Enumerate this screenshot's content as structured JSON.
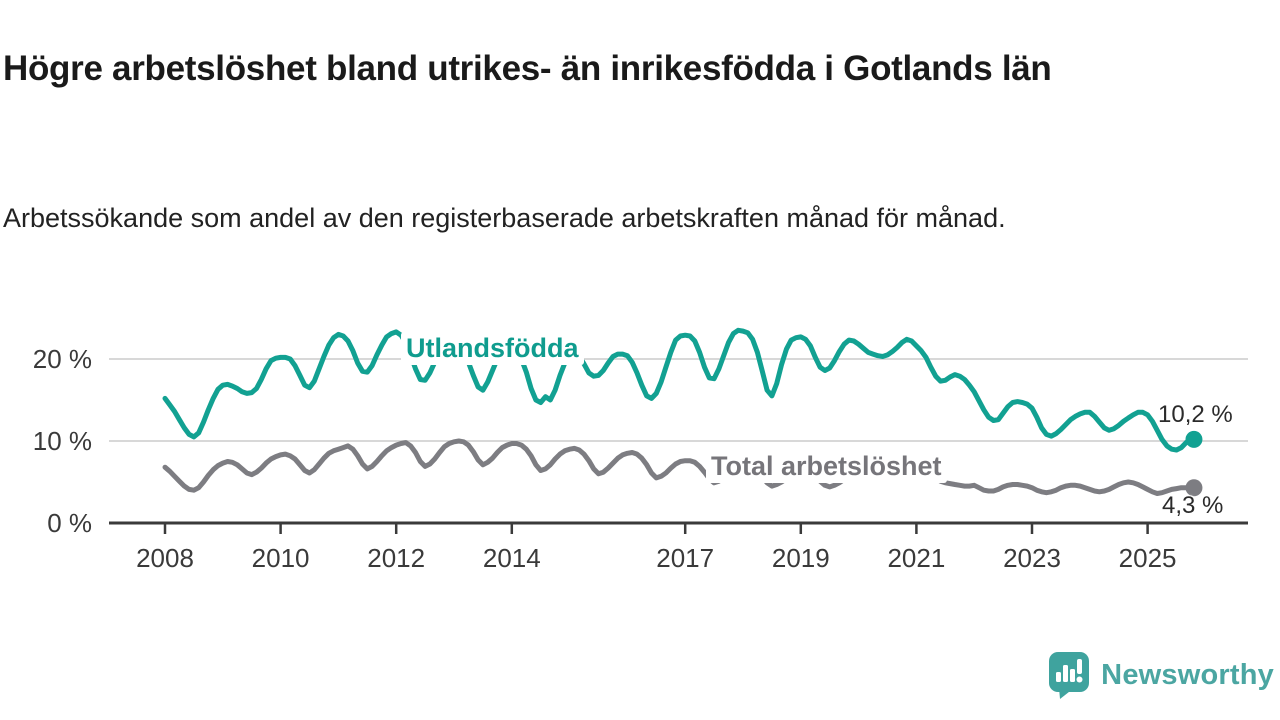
{
  "title": "Högre arbetslöshet bland utrikes- än inrikesfödda i Gotlands län",
  "subtitle": "Arbetssökande som andel av den registerbaserade arbetskraften månad för månad.",
  "colors": {
    "grid": "#d8d8d8",
    "axis": "#3a3a3a",
    "tick_text": "#3a3a3a",
    "title_text": "#1a1a1a",
    "teal": "#12a192",
    "gray": "#7d7d82"
  },
  "chart_data": {
    "type": "line",
    "unit": "%",
    "x_start": {
      "year": 2008,
      "month": 1
    },
    "x_end": {
      "year": 2025,
      "month": 10
    },
    "frequency": "monthly",
    "x_ticks": [
      2008,
      2010,
      2012,
      2014,
      2017,
      2019,
      2021,
      2023,
      2025
    ],
    "y_ticks": [
      {
        "value": 0,
        "label": "0 %"
      },
      {
        "value": 10,
        "label": "10 %"
      },
      {
        "value": 20,
        "label": "20 %"
      }
    ],
    "ylim": [
      0,
      25
    ],
    "grid": "horizontal-only",
    "legend_position": "inline-labels",
    "series": [
      {
        "name": "Utlandsfödda",
        "color": "#12a192",
        "end_label": "10,2 %",
        "end_value": 10.2,
        "values": [
          15.2,
          14.4,
          13.6,
          12.6,
          11.6,
          10.8,
          10.5,
          11.0,
          12.3,
          13.8,
          15.2,
          16.3,
          16.8,
          16.9,
          16.7,
          16.4,
          16.0,
          15.8,
          15.9,
          16.4,
          17.5,
          18.8,
          19.8,
          20.1,
          20.2,
          20.2,
          20.0,
          19.2,
          18.0,
          16.8,
          16.5,
          17.3,
          18.8,
          20.3,
          21.7,
          22.6,
          23.0,
          22.8,
          22.2,
          21.0,
          19.5,
          18.5,
          18.4,
          19.2,
          20.5,
          21.7,
          22.7,
          23.1,
          23.3,
          22.9,
          22.0,
          20.5,
          18.8,
          17.5,
          17.4,
          18.3,
          19.6,
          20.8,
          21.6,
          22.0,
          22.1,
          21.8,
          21.0,
          19.6,
          18.0,
          16.6,
          16.2,
          17.2,
          18.6,
          20.0,
          21.0,
          21.5,
          21.6,
          21.0,
          20.0,
          18.4,
          16.4,
          15.0,
          14.7,
          15.4,
          15.0,
          16.2,
          18.0,
          19.5,
          20.2,
          20.6,
          20.3,
          19.4,
          18.3,
          17.9,
          18.0,
          18.6,
          19.5,
          20.3,
          20.6,
          20.6,
          20.4,
          19.6,
          18.3,
          16.8,
          15.5,
          15.2,
          15.8,
          17.2,
          19.0,
          20.8,
          22.3,
          22.8,
          22.9,
          22.8,
          22.2,
          20.8,
          19.0,
          17.7,
          17.6,
          18.8,
          20.4,
          22.0,
          23.1,
          23.5,
          23.4,
          23.2,
          22.4,
          20.8,
          18.5,
          16.2,
          15.5,
          17.0,
          19.3,
          21.2,
          22.3,
          22.6,
          22.7,
          22.4,
          21.6,
          20.2,
          19.0,
          18.6,
          18.9,
          19.8,
          20.9,
          21.8,
          22.3,
          22.2,
          21.8,
          21.3,
          20.8,
          20.6,
          20.4,
          20.3,
          20.5,
          20.9,
          21.4,
          22.0,
          22.4,
          22.2,
          21.6,
          21.0,
          20.2,
          19.0,
          17.9,
          17.3,
          17.4,
          17.8,
          18.1,
          17.9,
          17.5,
          16.8,
          16.0,
          14.9,
          13.8,
          12.9,
          12.5,
          12.6,
          13.4,
          14.2,
          14.7,
          14.8,
          14.7,
          14.5,
          14.0,
          12.9,
          11.6,
          10.8,
          10.6,
          10.9,
          11.4,
          12.0,
          12.6,
          13.0,
          13.3,
          13.5,
          13.5,
          13.0,
          12.3,
          11.6,
          11.3,
          11.5,
          11.9,
          12.4,
          12.8,
          13.2,
          13.5,
          13.5,
          13.2,
          12.4,
          11.3,
          10.2,
          9.4,
          9.0,
          8.9,
          9.2,
          9.8,
          10.2
        ]
      },
      {
        "name": "Total arbetslöshet",
        "color": "#7d7d82",
        "end_label": "4,3 %",
        "end_value": 4.3,
        "values": [
          6.8,
          6.3,
          5.7,
          5.1,
          4.5,
          4.1,
          4.0,
          4.3,
          5.0,
          5.8,
          6.5,
          7.0,
          7.3,
          7.5,
          7.4,
          7.1,
          6.6,
          6.1,
          5.9,
          6.2,
          6.7,
          7.3,
          7.8,
          8.1,
          8.3,
          8.4,
          8.2,
          7.8,
          7.1,
          6.4,
          6.1,
          6.5,
          7.2,
          7.9,
          8.5,
          8.8,
          9.0,
          9.2,
          9.4,
          9.0,
          8.2,
          7.2,
          6.6,
          6.9,
          7.5,
          8.2,
          8.8,
          9.2,
          9.5,
          9.7,
          9.8,
          9.4,
          8.6,
          7.5,
          6.9,
          7.2,
          7.8,
          8.6,
          9.3,
          9.7,
          9.9,
          10.0,
          9.9,
          9.5,
          8.7,
          7.7,
          7.1,
          7.4,
          7.9,
          8.6,
          9.2,
          9.5,
          9.7,
          9.7,
          9.5,
          9.0,
          8.2,
          7.1,
          6.4,
          6.6,
          7.1,
          7.8,
          8.4,
          8.8,
          9.0,
          9.1,
          8.9,
          8.4,
          7.6,
          6.6,
          6.0,
          6.2,
          6.7,
          7.3,
          7.9,
          8.3,
          8.5,
          8.6,
          8.4,
          7.9,
          7.1,
          6.1,
          5.5,
          5.7,
          6.1,
          6.7,
          7.2,
          7.5,
          7.6,
          7.6,
          7.4,
          6.9,
          6.2,
          5.4,
          4.9,
          5.1,
          5.5,
          6.0,
          6.4,
          6.7,
          6.8,
          6.8,
          6.6,
          6.2,
          5.6,
          4.9,
          4.5,
          4.7,
          5.0,
          5.4,
          5.8,
          6.0,
          6.1,
          6.1,
          6.0,
          5.6,
          5.1,
          4.6,
          4.4,
          4.6,
          4.9,
          5.3,
          5.6,
          5.8,
          6.0,
          6.1,
          6.5,
          7.0,
          7.2,
          7.1,
          6.9,
          6.8,
          6.6,
          6.5,
          6.4,
          6.3,
          6.3,
          6.2,
          6.0,
          5.7,
          5.4,
          5.1,
          4.9,
          4.8,
          4.7,
          4.6,
          4.5,
          4.5,
          4.6,
          4.3,
          4.0,
          3.9,
          3.9,
          4.1,
          4.4,
          4.6,
          4.7,
          4.7,
          4.6,
          4.5,
          4.3,
          4.0,
          3.8,
          3.7,
          3.8,
          4.0,
          4.3,
          4.5,
          4.6,
          4.6,
          4.5,
          4.3,
          4.1,
          3.9,
          3.8,
          3.9,
          4.1,
          4.4,
          4.7,
          4.9,
          5.0,
          4.9,
          4.7,
          4.4,
          4.1,
          3.8,
          3.6,
          3.7,
          3.9,
          4.1,
          4.2,
          4.3,
          4.3,
          4.3
        ]
      }
    ]
  },
  "logo": {
    "text": "Newsworthy",
    "text_color": "#4ba6a2",
    "mark_color": "#3fa39e"
  }
}
